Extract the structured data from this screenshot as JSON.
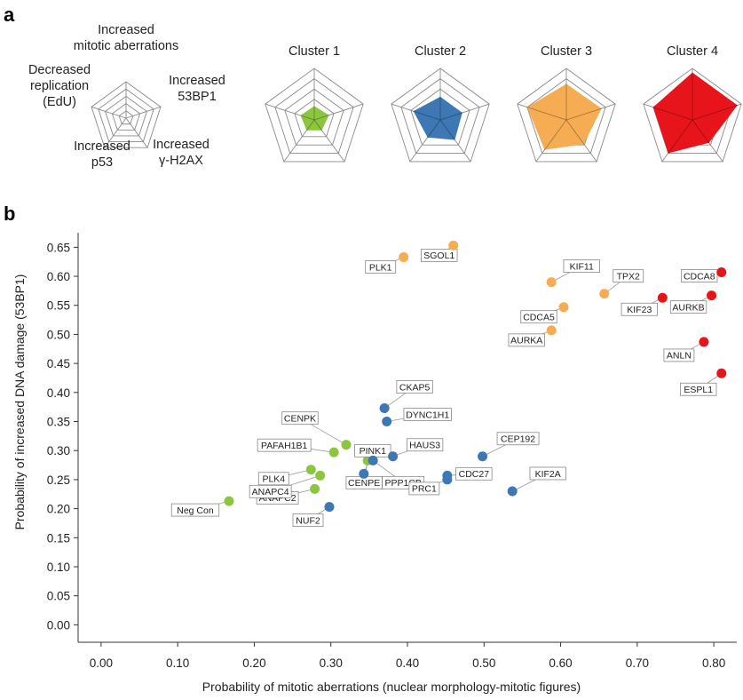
{
  "panel_a_label": "a",
  "panel_b_label": "b",
  "radar_legend": {
    "axes": [
      "Increased mitotic aberrations",
      "Increased 53BP1",
      "Increased γ-H2AX",
      "Increased p53",
      "Decreased replication (EdU)"
    ],
    "label_lines": [
      [
        "Increased",
        "mitotic aberrations"
      ],
      [
        "Increased",
        "53BP1"
      ],
      [
        "Increased",
        "γ-H2AX"
      ],
      [
        "Increased",
        "p53"
      ],
      [
        "Decreased",
        "replication",
        "(EdU)"
      ]
    ]
  },
  "colors": {
    "cluster1": "#8cc63e",
    "cluster2": "#3d78b4",
    "cluster3": "#f6ac52",
    "cluster4": "#e8141b",
    "grid": "#8a8a8a"
  },
  "chart_data": [
    {
      "type": "radar",
      "title": "Cluster 1",
      "axes": [
        "Increased mitotic aberrations",
        "Increased 53BP1",
        "Increased γ-H2AX",
        "Increased p53",
        "Decreased replication (EdU)"
      ],
      "values": [
        0.27,
        0.3,
        0.25,
        0.25,
        0.28
      ],
      "color": "#8cc63e"
    },
    {
      "type": "radar",
      "title": "Cluster 2",
      "axes": [
        "Increased mitotic aberrations",
        "Increased 53BP1",
        "Increased γ-H2AX",
        "Increased p53",
        "Decreased replication (EdU)"
      ],
      "values": [
        0.45,
        0.45,
        0.48,
        0.42,
        0.55
      ],
      "color": "#3d78b4"
    },
    {
      "type": "radar",
      "title": "Cluster 3",
      "axes": [
        "Increased mitotic aberrations",
        "Increased 53BP1",
        "Increased γ-H2AX",
        "Increased p53",
        "Decreased replication (EdU)"
      ],
      "values": [
        0.7,
        0.72,
        0.58,
        0.72,
        0.8
      ],
      "color": "#f6ac52"
    },
    {
      "type": "radar",
      "title": "Cluster 4",
      "axes": [
        "Increased mitotic aberrations",
        "Increased 53BP1",
        "Increased γ-H2AX",
        "Increased p53",
        "Decreased replication (EdU)"
      ],
      "values": [
        0.92,
        0.92,
        0.55,
        0.8,
        0.8
      ],
      "color": "#e8141b"
    },
    {
      "type": "scatter",
      "xlabel": "Probability of mitotic aberrations (nuclear morphology-mitotic figures)",
      "ylabel": "Probability of increased DNA damage (53BP1)",
      "xlim": [
        -0.03,
        0.83
      ],
      "ylim": [
        -0.03,
        0.675
      ],
      "xticks": [
        "0.00",
        "0.10",
        "0.20",
        "0.30",
        "0.40",
        "0.50",
        "0.60",
        "0.70",
        "0.80"
      ],
      "yticks": [
        "0.00",
        "0.05",
        "0.10",
        "0.15",
        "0.20",
        "0.25",
        "0.30",
        "0.35",
        "0.40",
        "0.45",
        "0.50",
        "0.55",
        "0.60",
        "0.65"
      ],
      "points": [
        {
          "label": "Neg Con",
          "x": 0.167,
          "y": 0.213,
          "cluster": 1
        },
        {
          "label": "PLK4",
          "x": 0.274,
          "y": 0.267,
          "cluster": 1
        },
        {
          "label": "ANAPC2",
          "x": 0.279,
          "y": 0.234,
          "cluster": 1
        },
        {
          "label": "ANAPC4",
          "x": 0.286,
          "y": 0.257,
          "cluster": 1
        },
        {
          "label": "PAFAH1B1",
          "x": 0.304,
          "y": 0.297,
          "cluster": 1
        },
        {
          "label": "CENPK",
          "x": 0.32,
          "y": 0.31,
          "cluster": 1
        },
        {
          "label": "CENPE",
          "x": 0.348,
          "y": 0.283,
          "cluster": 1
        },
        {
          "label": "NUF2",
          "x": 0.298,
          "y": 0.203,
          "cluster": 2
        },
        {
          "label": "PINK1",
          "x": 0.343,
          "y": 0.26,
          "cluster": 2
        },
        {
          "label": "PPP1CB",
          "x": 0.355,
          "y": 0.283,
          "cluster": 2
        },
        {
          "label": "HAUS3",
          "x": 0.381,
          "y": 0.29,
          "cluster": 2
        },
        {
          "label": "CKAP5",
          "x": 0.37,
          "y": 0.373,
          "cluster": 2
        },
        {
          "label": "DYNC1H1",
          "x": 0.373,
          "y": 0.35,
          "cluster": 2
        },
        {
          "label": "PRC1",
          "x": 0.452,
          "y": 0.25,
          "cluster": 2
        },
        {
          "label": "CDC27",
          "x": 0.452,
          "y": 0.257,
          "cluster": 2
        },
        {
          "label": "CEP192",
          "x": 0.498,
          "y": 0.29,
          "cluster": 2
        },
        {
          "label": "KIF2A",
          "x": 0.537,
          "y": 0.23,
          "cluster": 2
        },
        {
          "label": "PLK1",
          "x": 0.395,
          "y": 0.633,
          "cluster": 3
        },
        {
          "label": "SGOL1",
          "x": 0.46,
          "y": 0.653,
          "cluster": 3
        },
        {
          "label": "KIF11",
          "x": 0.588,
          "y": 0.59,
          "cluster": 3
        },
        {
          "label": "CDCA5",
          "x": 0.604,
          "y": 0.547,
          "cluster": 3
        },
        {
          "label": "AURKA",
          "x": 0.588,
          "y": 0.507,
          "cluster": 3
        },
        {
          "label": "TPX2",
          "x": 0.657,
          "y": 0.57,
          "cluster": 3
        },
        {
          "label": "KIF23",
          "x": 0.733,
          "y": 0.563,
          "cluster": 4
        },
        {
          "label": "AURKB",
          "x": 0.797,
          "y": 0.567,
          "cluster": 4
        },
        {
          "label": "CDCA8",
          "x": 0.81,
          "y": 0.607,
          "cluster": 4
        },
        {
          "label": "ANLN",
          "x": 0.787,
          "y": 0.487,
          "cluster": 4
        },
        {
          "label": "ESPL1",
          "x": 0.81,
          "y": 0.433,
          "cluster": 4
        }
      ]
    }
  ]
}
